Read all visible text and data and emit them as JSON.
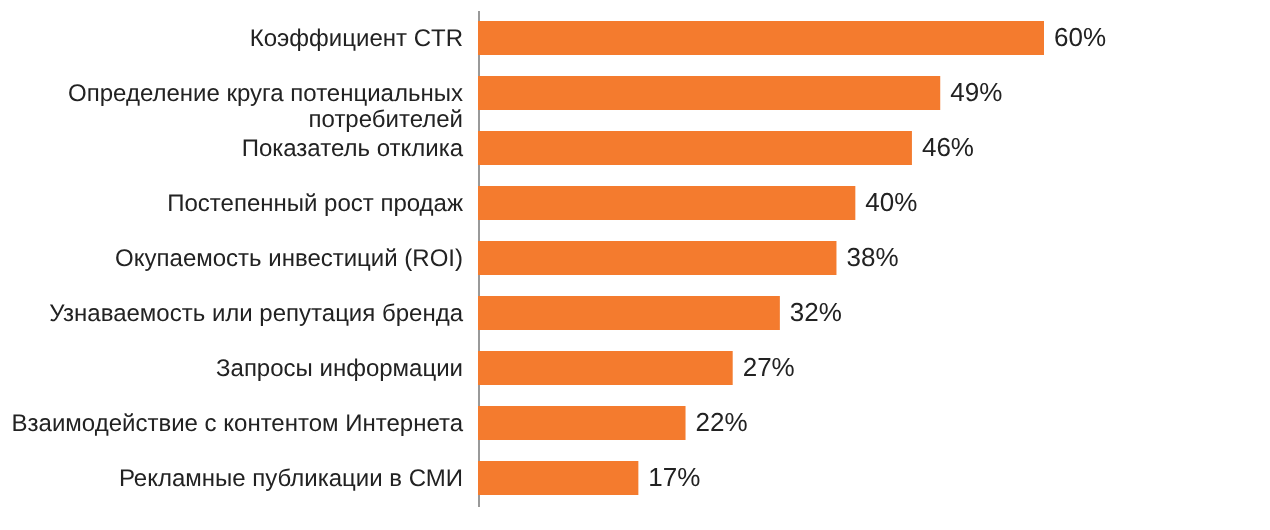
{
  "chart_data": {
    "type": "bar",
    "orientation": "horizontal",
    "categories": [
      "Коэффициент CTR",
      "Определение круга потенциальных\nпотребителей",
      "Показатель отклика",
      "Постепенный рост продаж",
      "Окупаемость инвестиций (ROI)",
      "Узнаваемость или репутация бренда",
      "Запросы информации",
      "Взаимодействие с контентом Интернета",
      "Рекламные публикации в СМИ"
    ],
    "values": [
      60,
      49,
      46,
      40,
      38,
      32,
      27,
      22,
      17
    ],
    "value_labels": [
      "60%",
      "49%",
      "46%",
      "40%",
      "38%",
      "32%",
      "27%",
      "22%",
      "17%"
    ],
    "color": "#f47b2e",
    "grid": false,
    "tick_labels": "y"
  }
}
